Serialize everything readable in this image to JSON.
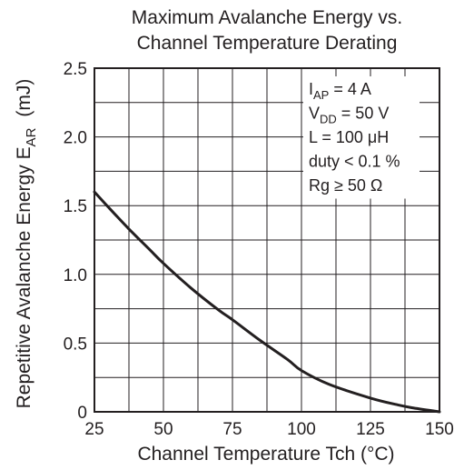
{
  "chart_data": {
    "type": "line",
    "title": [
      "Maximum Avalanche Energy vs.",
      "Channel Temperature Derating"
    ],
    "xlabel": "Channel Temperature   Tch  (°C)",
    "ylabel": "Repetitive Avalanche Energy   E",
    "ylabel_sub": "AR",
    "ylabel_unit": "(mJ)",
    "x_ticks": [
      "25",
      "50",
      "75",
      "100",
      "125",
      "150"
    ],
    "y_ticks": [
      "0",
      "0.5",
      "1.0",
      "1.5",
      "2.0",
      "2.5"
    ],
    "xlim": [
      25,
      150
    ],
    "ylim": [
      0,
      2.5
    ],
    "grid": true,
    "x_minor_step": 12.5,
    "y_minor_step": 0.25,
    "series": [
      {
        "x": [
          25,
          30,
          37.5,
          45,
          50,
          60,
          70,
          75,
          85,
          95,
          100,
          110,
          125,
          135,
          140,
          150
        ],
        "y": [
          1.6,
          1.49,
          1.33,
          1.18,
          1.08,
          0.9,
          0.74,
          0.67,
          0.52,
          0.38,
          0.3,
          0.2,
          0.1,
          0.05,
          0.03,
          0
        ]
      }
    ],
    "annotations": [
      {
        "main": "I",
        "sub": "AP",
        "rest": " = 4 A"
      },
      {
        "main": "V",
        "sub": "DD",
        "rest": " = 50 V"
      },
      {
        "main": "L = 100 ",
        "sub": "",
        "rest": "μH"
      },
      {
        "main": "duty < 0.1 %",
        "sub": "",
        "rest": ""
      },
      {
        "main": "Rg ≥ 50 Ω",
        "sub": "",
        "rest": ""
      }
    ],
    "colors": {
      "ink": "#231f20",
      "grid": "#231f20",
      "background": "#ffffff"
    }
  }
}
